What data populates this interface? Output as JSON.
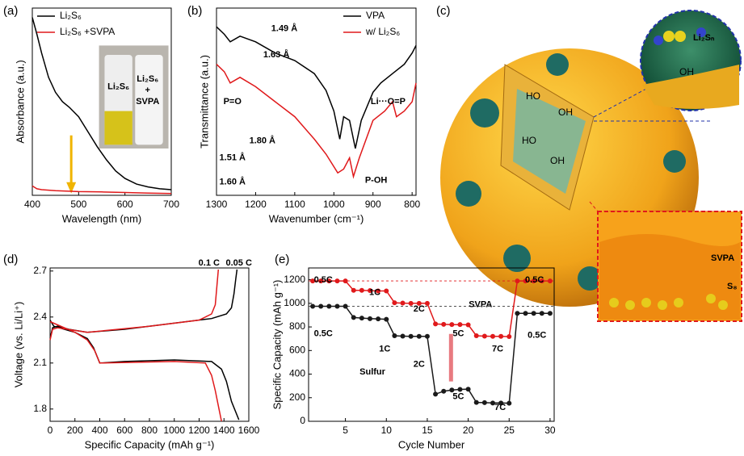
{
  "chart_data": [
    {
      "type": "line",
      "panel_label": "(a)",
      "xlabel": "Wavelength (nm)",
      "ylabel": "Absorbance (a.u.)",
      "xlim": [
        400,
        700
      ],
      "xticks": [
        400,
        500,
        600,
        700
      ],
      "ylim": [
        0,
        1
      ],
      "legend": "upper left",
      "series": [
        {
          "name": "Li₂S₆",
          "color": "#000000",
          "x": [
            400,
            410,
            420,
            435,
            450,
            465,
            480,
            500,
            520,
            540,
            560,
            580,
            600,
            625,
            650,
            675,
            700
          ],
          "values": [
            0.95,
            0.86,
            0.76,
            0.63,
            0.55,
            0.5,
            0.47,
            0.42,
            0.34,
            0.26,
            0.19,
            0.13,
            0.09,
            0.06,
            0.045,
            0.035,
            0.03
          ]
        },
        {
          "name": "Li₂S₆ +SVPA",
          "color": "#e0191b",
          "x": [
            400,
            410,
            420,
            450,
            500,
            550,
            600,
            650,
            700
          ],
          "values": [
            0.05,
            0.035,
            0.03,
            0.025,
            0.02,
            0.018,
            0.015,
            0.012,
            0.01
          ]
        }
      ],
      "annotations": [
        {
          "text": "Li₂S₆",
          "color": "#000000"
        },
        {
          "text": "Li₂S₆",
          "color": "#e0191b"
        },
        {
          "text": "+",
          "color": "#e0191b"
        },
        {
          "text": "SVPA",
          "color": "#e0191b"
        }
      ]
    },
    {
      "type": "line",
      "panel_label": "(b)",
      "xlabel": "Wavenumber (cm⁻¹)",
      "ylabel": "Transmittance (a.u.)",
      "xlim": [
        1300,
        790
      ],
      "xticks": [
        1300,
        1200,
        1100,
        1000,
        900,
        800
      ],
      "ylim": [
        0,
        1
      ],
      "legend": "upper right",
      "series": [
        {
          "name": "VPA",
          "color": "#000000",
          "x": [
            1300,
            1280,
            1265,
            1240,
            1200,
            1150,
            1100,
            1050,
            1020,
            1000,
            985,
            975,
            960,
            945,
            930,
            900,
            880,
            850,
            820,
            800,
            790
          ],
          "values": [
            0.9,
            0.86,
            0.82,
            0.85,
            0.82,
            0.76,
            0.72,
            0.65,
            0.56,
            0.45,
            0.3,
            0.42,
            0.4,
            0.25,
            0.4,
            0.55,
            0.6,
            0.65,
            0.7,
            0.76,
            0.8
          ]
        },
        {
          "name": "w/ Li₂S₆",
          "color": "#e0191b",
          "x": [
            1300,
            1280,
            1265,
            1240,
            1200,
            1150,
            1100,
            1050,
            1020,
            990,
            975,
            960,
            950,
            935,
            900,
            870,
            850,
            840,
            820,
            800,
            790
          ],
          "values": [
            0.7,
            0.66,
            0.6,
            0.63,
            0.58,
            0.5,
            0.42,
            0.3,
            0.22,
            0.12,
            0.14,
            0.2,
            0.1,
            0.2,
            0.4,
            0.45,
            0.5,
            0.42,
            0.45,
            0.5,
            0.6
          ]
        }
      ],
      "annotations": [
        {
          "text": "1.49 Å",
          "color": "#e0191b"
        },
        {
          "text": "1.63 Å",
          "color": "#1f3fbf"
        },
        {
          "text": "P=O",
          "color": "#e0191b"
        },
        {
          "text": "Li···O=P",
          "color": "#e0191b"
        },
        {
          "text": "P-OH",
          "color": "#1f3fbf"
        },
        {
          "text": "1.80 Å",
          "color": "#000000"
        },
        {
          "text": "1.51 Å",
          "color": "#e0191b"
        },
        {
          "text": "1.60 Å",
          "color": "#1f3fbf"
        }
      ]
    },
    {
      "type": "line",
      "panel_label": "(d)",
      "xlabel": "Specific Capacity (mAh g⁻¹)",
      "ylabel": "Voltage (vs. Li/Li⁺)",
      "xlim": [
        0,
        1600
      ],
      "xticks": [
        0,
        200,
        400,
        600,
        800,
        1000,
        1200,
        1400,
        1600
      ],
      "ylim": [
        1.72,
        2.72
      ],
      "yticks": [
        1.8,
        2.1,
        2.4,
        2.7
      ],
      "series": [
        {
          "color": "#000000",
          "x": [
            0,
            20,
            60,
            150,
            300,
            600,
            1000,
            1300,
            1420,
            1460,
            1480,
            1495,
            1505,
            null,
            0,
            30,
            200,
            300,
            350,
            400,
            600,
            1000,
            1300,
            1380,
            1420,
            1460,
            1520
          ],
          "values": [
            2.26,
            2.33,
            2.34,
            2.32,
            2.3,
            2.32,
            2.36,
            2.39,
            2.42,
            2.46,
            2.55,
            2.65,
            2.71,
            null,
            2.38,
            2.34,
            2.3,
            2.26,
            2.2,
            2.1,
            2.11,
            2.12,
            2.11,
            2.06,
            1.98,
            1.85,
            1.73
          ]
        },
        {
          "color": "#e0191b",
          "x": [
            0,
            20,
            60,
            300,
            800,
            1200,
            1300,
            1330,
            1345,
            1355,
            null,
            0,
            200,
            300,
            360,
            400,
            1000,
            1250,
            1300,
            1330,
            1360,
            1380
          ],
          "values": [
            2.25,
            2.32,
            2.33,
            2.3,
            2.34,
            2.38,
            2.42,
            2.48,
            2.62,
            2.71,
            null,
            2.37,
            2.3,
            2.25,
            2.18,
            2.1,
            2.11,
            2.1,
            2.02,
            1.92,
            1.8,
            1.72
          ]
        }
      ],
      "annotations": [
        {
          "text": "0.1 C",
          "color": "#e0191b"
        },
        {
          "text": "0.05 C",
          "color": "#000000"
        }
      ]
    },
    {
      "type": "line",
      "panel_label": "(e)",
      "xlabel": "Cycle Number",
      "ylabel": "Specific Capacity (mAh g⁻¹)",
      "markers": true,
      "xlim": [
        0.5,
        30.5
      ],
      "xticks": [
        5,
        10,
        15,
        20,
        25,
        30
      ],
      "ylim": [
        0,
        1300
      ],
      "yticks": [
        0,
        200,
        400,
        600,
        800,
        1000,
        1200
      ],
      "series": [
        {
          "color": "#e0191b",
          "x": [
            1,
            2,
            3,
            4,
            5,
            6,
            7,
            8,
            9,
            10,
            11,
            12,
            13,
            14,
            15,
            16,
            17,
            18,
            19,
            20,
            21,
            22,
            23,
            24,
            25,
            26,
            27,
            28,
            29,
            30
          ],
          "values": [
            1190,
            1190,
            1190,
            1190,
            1190,
            1110,
            1110,
            1108,
            1105,
            1105,
            1005,
            1002,
            1000,
            1000,
            1000,
            825,
            822,
            820,
            820,
            818,
            725,
            722,
            720,
            720,
            718,
            1190,
            1190,
            1190,
            1190,
            1190
          ]
        },
        {
          "color": "#1a1a1a",
          "x": [
            1,
            2,
            3,
            4,
            5,
            6,
            7,
            8,
            9,
            10,
            11,
            12,
            13,
            14,
            15,
            16,
            17,
            18,
            19,
            20,
            21,
            22,
            23,
            24,
            25,
            26,
            27,
            28,
            29,
            30
          ],
          "values": [
            975,
            975,
            975,
            975,
            975,
            880,
            875,
            870,
            868,
            865,
            725,
            722,
            720,
            720,
            720,
            230,
            255,
            265,
            270,
            272,
            160,
            158,
            155,
            155,
            153,
            915,
            915,
            915,
            915,
            915
          ]
        }
      ],
      "annotations": [
        {
          "text": "0.5C",
          "color": "#e0191b"
        },
        {
          "text": "1C",
          "color": "#e0191b"
        },
        {
          "text": "2C",
          "color": "#e0191b"
        },
        {
          "text": "5C",
          "color": "#e0191b"
        },
        {
          "text": "7C",
          "color": "#e0191b"
        },
        {
          "text": "0.5C",
          "color": "#e0191b"
        },
        {
          "text": "0.5C",
          "color": "#000000"
        },
        {
          "text": "1C",
          "color": "#000000"
        },
        {
          "text": "2C",
          "color": "#000000"
        },
        {
          "text": "5C",
          "color": "#000000"
        },
        {
          "text": "7C",
          "color": "#000000"
        },
        {
          "text": "0.5C",
          "color": "#000000"
        },
        {
          "text": "SVPA",
          "color": "#e0191b"
        },
        {
          "text": "Sulfur",
          "color": "#000000"
        }
      ]
    }
  ],
  "illustration": {
    "panel_label": "(c)",
    "zoom_label": "Li₂Sₙ",
    "polymer_label": "SVPA",
    "sulfur_label": "S₈",
    "groups": [
      "HO",
      "OH",
      "HO",
      "OH",
      "OH"
    ]
  }
}
